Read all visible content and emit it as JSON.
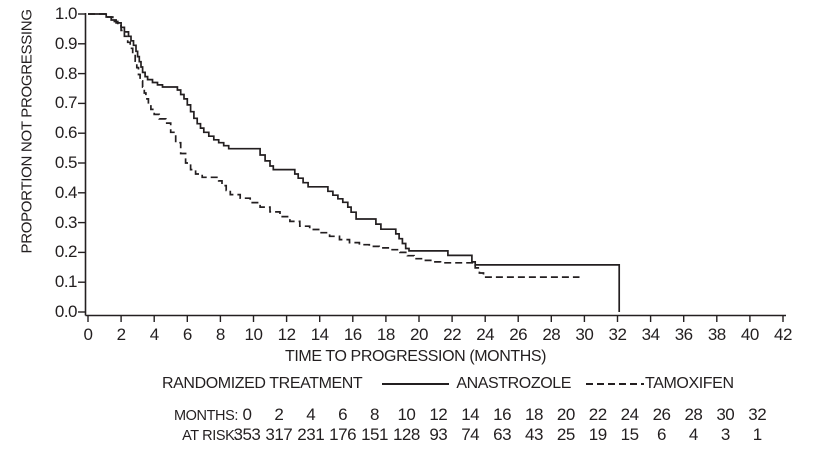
{
  "colors": {
    "line": "#231f20",
    "text": "#231f20",
    "background": "#ffffff"
  },
  "chart_data": {
    "type": "line",
    "subtype": "kaplan-meier-step",
    "title": "",
    "xlabel": "TIME TO PROGRESSION (MONTHS)",
    "ylabel": "PROPORTION NOT PROGRESSING",
    "xlim": [
      0,
      42
    ],
    "ylim": [
      0.0,
      1.0
    ],
    "grid": false,
    "legend_position": "bottom",
    "legend_title": "RANDOMIZED TREATMENT",
    "x_ticks": [
      0,
      2,
      4,
      6,
      8,
      10,
      12,
      14,
      16,
      18,
      20,
      22,
      24,
      26,
      28,
      30,
      32,
      34,
      36,
      38,
      40,
      42
    ],
    "y_ticks": [
      "1.0",
      "0.9",
      "0.8",
      "0.7",
      "0.6",
      "0.5",
      "0.4",
      "0.3",
      "0.2",
      "0.1",
      "0.0"
    ],
    "series": [
      {
        "name": "ANASTROZOLE",
        "style": "solid",
        "steps": [
          [
            0,
            1.0
          ],
          [
            1.1,
            0.99
          ],
          [
            1.4,
            0.98
          ],
          [
            1.7,
            0.97
          ],
          [
            2.0,
            0.955
          ],
          [
            2.2,
            0.94
          ],
          [
            2.45,
            0.925
          ],
          [
            2.6,
            0.91
          ],
          [
            2.75,
            0.895
          ],
          [
            2.9,
            0.875
          ],
          [
            3.0,
            0.857
          ],
          [
            3.1,
            0.84
          ],
          [
            3.2,
            0.822
          ],
          [
            3.3,
            0.804
          ],
          [
            3.45,
            0.79
          ],
          [
            3.6,
            0.78
          ],
          [
            3.9,
            0.77
          ],
          [
            4.2,
            0.762
          ],
          [
            4.5,
            0.755
          ],
          [
            5.4,
            0.745
          ],
          [
            5.6,
            0.73
          ],
          [
            5.8,
            0.715
          ],
          [
            6.0,
            0.695
          ],
          [
            6.2,
            0.672
          ],
          [
            6.4,
            0.65
          ],
          [
            6.6,
            0.632
          ],
          [
            6.8,
            0.617
          ],
          [
            7.0,
            0.603
          ],
          [
            7.3,
            0.59
          ],
          [
            7.6,
            0.578
          ],
          [
            7.9,
            0.568
          ],
          [
            8.2,
            0.558
          ],
          [
            8.5,
            0.548
          ],
          [
            10.4,
            0.527
          ],
          [
            10.7,
            0.507
          ],
          [
            11.0,
            0.49
          ],
          [
            11.2,
            0.478
          ],
          [
            12.5,
            0.463
          ],
          [
            12.7,
            0.449
          ],
          [
            13.0,
            0.434
          ],
          [
            13.3,
            0.42
          ],
          [
            14.5,
            0.405
          ],
          [
            14.8,
            0.392
          ],
          [
            15.1,
            0.38
          ],
          [
            15.4,
            0.368
          ],
          [
            15.7,
            0.352
          ],
          [
            15.9,
            0.335
          ],
          [
            16.2,
            0.312
          ],
          [
            17.4,
            0.295
          ],
          [
            17.7,
            0.278
          ],
          [
            18.6,
            0.262
          ],
          [
            18.8,
            0.246
          ],
          [
            19.0,
            0.23
          ],
          [
            19.2,
            0.213
          ],
          [
            19.4,
            0.205
          ],
          [
            21.75,
            0.19
          ],
          [
            23.2,
            0.168
          ],
          [
            23.4,
            0.158
          ],
          [
            32.1,
            0.158
          ],
          [
            32.1,
            0.0
          ]
        ]
      },
      {
        "name": "TAMOXIFEN",
        "style": "dashed",
        "steps": [
          [
            0,
            1.0
          ],
          [
            1.2,
            0.99
          ],
          [
            1.5,
            0.975
          ],
          [
            1.8,
            0.96
          ],
          [
            2.0,
            0.945
          ],
          [
            2.2,
            0.925
          ],
          [
            2.4,
            0.905
          ],
          [
            2.55,
            0.885
          ],
          [
            2.7,
            0.865
          ],
          [
            2.85,
            0.842
          ],
          [
            2.95,
            0.82
          ],
          [
            3.05,
            0.797
          ],
          [
            3.15,
            0.775
          ],
          [
            3.3,
            0.755
          ],
          [
            3.4,
            0.735
          ],
          [
            3.5,
            0.715
          ],
          [
            3.65,
            0.697
          ],
          [
            3.8,
            0.68
          ],
          [
            4.0,
            0.663
          ],
          [
            4.3,
            0.648
          ],
          [
            4.7,
            0.634
          ],
          [
            5.0,
            0.603
          ],
          [
            5.3,
            0.568
          ],
          [
            5.6,
            0.532
          ],
          [
            5.9,
            0.5
          ],
          [
            6.2,
            0.478
          ],
          [
            6.5,
            0.463
          ],
          [
            6.9,
            0.452
          ],
          [
            7.9,
            0.44
          ],
          [
            8.1,
            0.424
          ],
          [
            8.35,
            0.408
          ],
          [
            8.6,
            0.394
          ],
          [
            9.2,
            0.382
          ],
          [
            9.8,
            0.367
          ],
          [
            10.4,
            0.352
          ],
          [
            11.0,
            0.336
          ],
          [
            11.6,
            0.32
          ],
          [
            12.2,
            0.304
          ],
          [
            12.8,
            0.288
          ],
          [
            13.4,
            0.277
          ],
          [
            14.0,
            0.266
          ],
          [
            14.6,
            0.254
          ],
          [
            15.2,
            0.243
          ],
          [
            15.8,
            0.233
          ],
          [
            16.4,
            0.226
          ],
          [
            17.0,
            0.22
          ],
          [
            17.6,
            0.215
          ],
          [
            18.2,
            0.209
          ],
          [
            18.85,
            0.2
          ],
          [
            19.3,
            0.189
          ],
          [
            19.7,
            0.179
          ],
          [
            20.3,
            0.173
          ],
          [
            20.8,
            0.168
          ],
          [
            21.3,
            0.165
          ],
          [
            23.1,
            0.165
          ],
          [
            23.4,
            0.148
          ],
          [
            23.65,
            0.131
          ],
          [
            23.9,
            0.117
          ],
          [
            29.7,
            0.117
          ]
        ]
      }
    ],
    "at_risk": {
      "months_label": "MONTHS:",
      "at_risk_label": "AT RISK:",
      "months": [
        0,
        2,
        4,
        6,
        8,
        10,
        12,
        14,
        16,
        18,
        20,
        22,
        24,
        26,
        28,
        30,
        32
      ],
      "counts": [
        353,
        317,
        231,
        176,
        151,
        128,
        93,
        74,
        63,
        43,
        25,
        19,
        15,
        6,
        4,
        3,
        1
      ]
    }
  }
}
